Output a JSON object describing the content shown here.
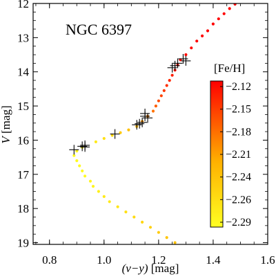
{
  "chart_data": {
    "type": "scatter",
    "title": "NGC 6397",
    "xlabel": {
      "var": "(v−y)",
      "unit": "[mag]"
    },
    "ylabel": {
      "var": "V",
      "unit": "[mag]"
    },
    "xlim": [
      0.74,
      1.6
    ],
    "ylim": [
      19.05,
      12.0
    ],
    "y_inverted": true,
    "x_ticks": [
      "0.8",
      "1.0",
      "1.2",
      "1.4",
      "1.6"
    ],
    "y_ticks": [
      "12",
      "13",
      "14",
      "15",
      "16",
      "17",
      "18",
      "19"
    ],
    "colorbar": {
      "title": "[Fe/H]",
      "ticks": [
        "−2.12",
        "−2.15",
        "−2.18",
        "−2.21",
        "−2.24",
        "−2.26",
        "−2.29"
      ],
      "range": [
        -2.29,
        -2.12
      ],
      "colors": [
        "#ffff22",
        "#ff0000"
      ]
    },
    "series": [
      {
        "marker": "dot",
        "points": [
          [
            0.92,
            16.21,
            -2.28
          ],
          [
            0.9,
            16.32,
            -2.28
          ],
          [
            0.89,
            16.45,
            -2.285
          ],
          [
            0.9,
            16.6,
            -2.285
          ],
          [
            0.91,
            16.75,
            -2.285
          ],
          [
            0.92,
            16.9,
            -2.285
          ],
          [
            0.93,
            17.05,
            -2.285
          ],
          [
            0.95,
            17.2,
            -2.28
          ],
          [
            0.96,
            17.35,
            -2.28
          ],
          [
            0.98,
            17.5,
            -2.275
          ],
          [
            1.0,
            17.65,
            -2.27
          ],
          [
            1.02,
            17.8,
            -2.27
          ],
          [
            1.05,
            17.95,
            -2.265
          ],
          [
            1.08,
            18.1,
            -2.26
          ],
          [
            1.11,
            18.25,
            -2.255
          ],
          [
            1.14,
            18.4,
            -2.25
          ],
          [
            1.17,
            18.55,
            -2.245
          ],
          [
            1.2,
            18.7,
            -2.24
          ],
          [
            1.23,
            18.85,
            -2.235
          ],
          [
            1.26,
            19.0,
            -2.23
          ],
          [
            0.97,
            16.05,
            -2.27
          ],
          [
            1.0,
            15.95,
            -2.26
          ],
          [
            1.03,
            15.86,
            -2.25
          ],
          [
            1.06,
            15.78,
            -2.24
          ],
          [
            1.09,
            15.7,
            -2.23
          ],
          [
            1.12,
            15.6,
            -2.22
          ],
          [
            1.14,
            15.45,
            -2.2
          ],
          [
            1.16,
            15.3,
            -2.19
          ],
          [
            1.18,
            15.15,
            -2.18
          ],
          [
            1.19,
            15.0,
            -2.17
          ],
          [
            1.2,
            14.85,
            -2.16
          ],
          [
            1.21,
            14.7,
            -2.155
          ],
          [
            1.22,
            14.55,
            -2.15
          ],
          [
            1.23,
            14.4,
            -2.145
          ],
          [
            1.24,
            14.25,
            -2.14
          ],
          [
            1.25,
            14.1,
            -2.135
          ],
          [
            1.26,
            13.95,
            -2.13
          ],
          [
            1.27,
            13.8,
            -2.13
          ],
          [
            1.28,
            13.65,
            -2.125
          ],
          [
            1.3,
            13.5,
            -2.125
          ],
          [
            1.32,
            13.3,
            -2.125
          ],
          [
            1.34,
            13.1,
            -2.12
          ],
          [
            1.36,
            12.95,
            -2.12
          ],
          [
            1.38,
            12.8,
            -2.12
          ],
          [
            1.4,
            12.6,
            -2.12
          ],
          [
            1.42,
            12.45,
            -2.12
          ],
          [
            1.44,
            12.3,
            -2.12
          ],
          [
            1.46,
            12.15,
            -2.12
          ],
          [
            1.48,
            12.02,
            -2.12
          ]
        ]
      },
      {
        "marker": "plus",
        "points": [
          [
            0.89,
            16.28
          ],
          [
            0.92,
            16.18
          ],
          [
            0.93,
            16.2
          ],
          [
            0.93,
            16.15
          ],
          [
            1.04,
            15.82
          ],
          [
            1.12,
            15.55
          ],
          [
            1.13,
            15.52
          ],
          [
            1.14,
            15.48
          ],
          [
            1.15,
            15.3
          ],
          [
            1.15,
            15.22
          ],
          [
            1.16,
            15.35
          ],
          [
            1.25,
            13.88
          ],
          [
            1.26,
            13.82
          ],
          [
            1.27,
            13.75
          ],
          [
            1.29,
            13.62
          ],
          [
            1.3,
            13.68
          ]
        ]
      }
    ],
    "legend": "none",
    "grid": false
  }
}
